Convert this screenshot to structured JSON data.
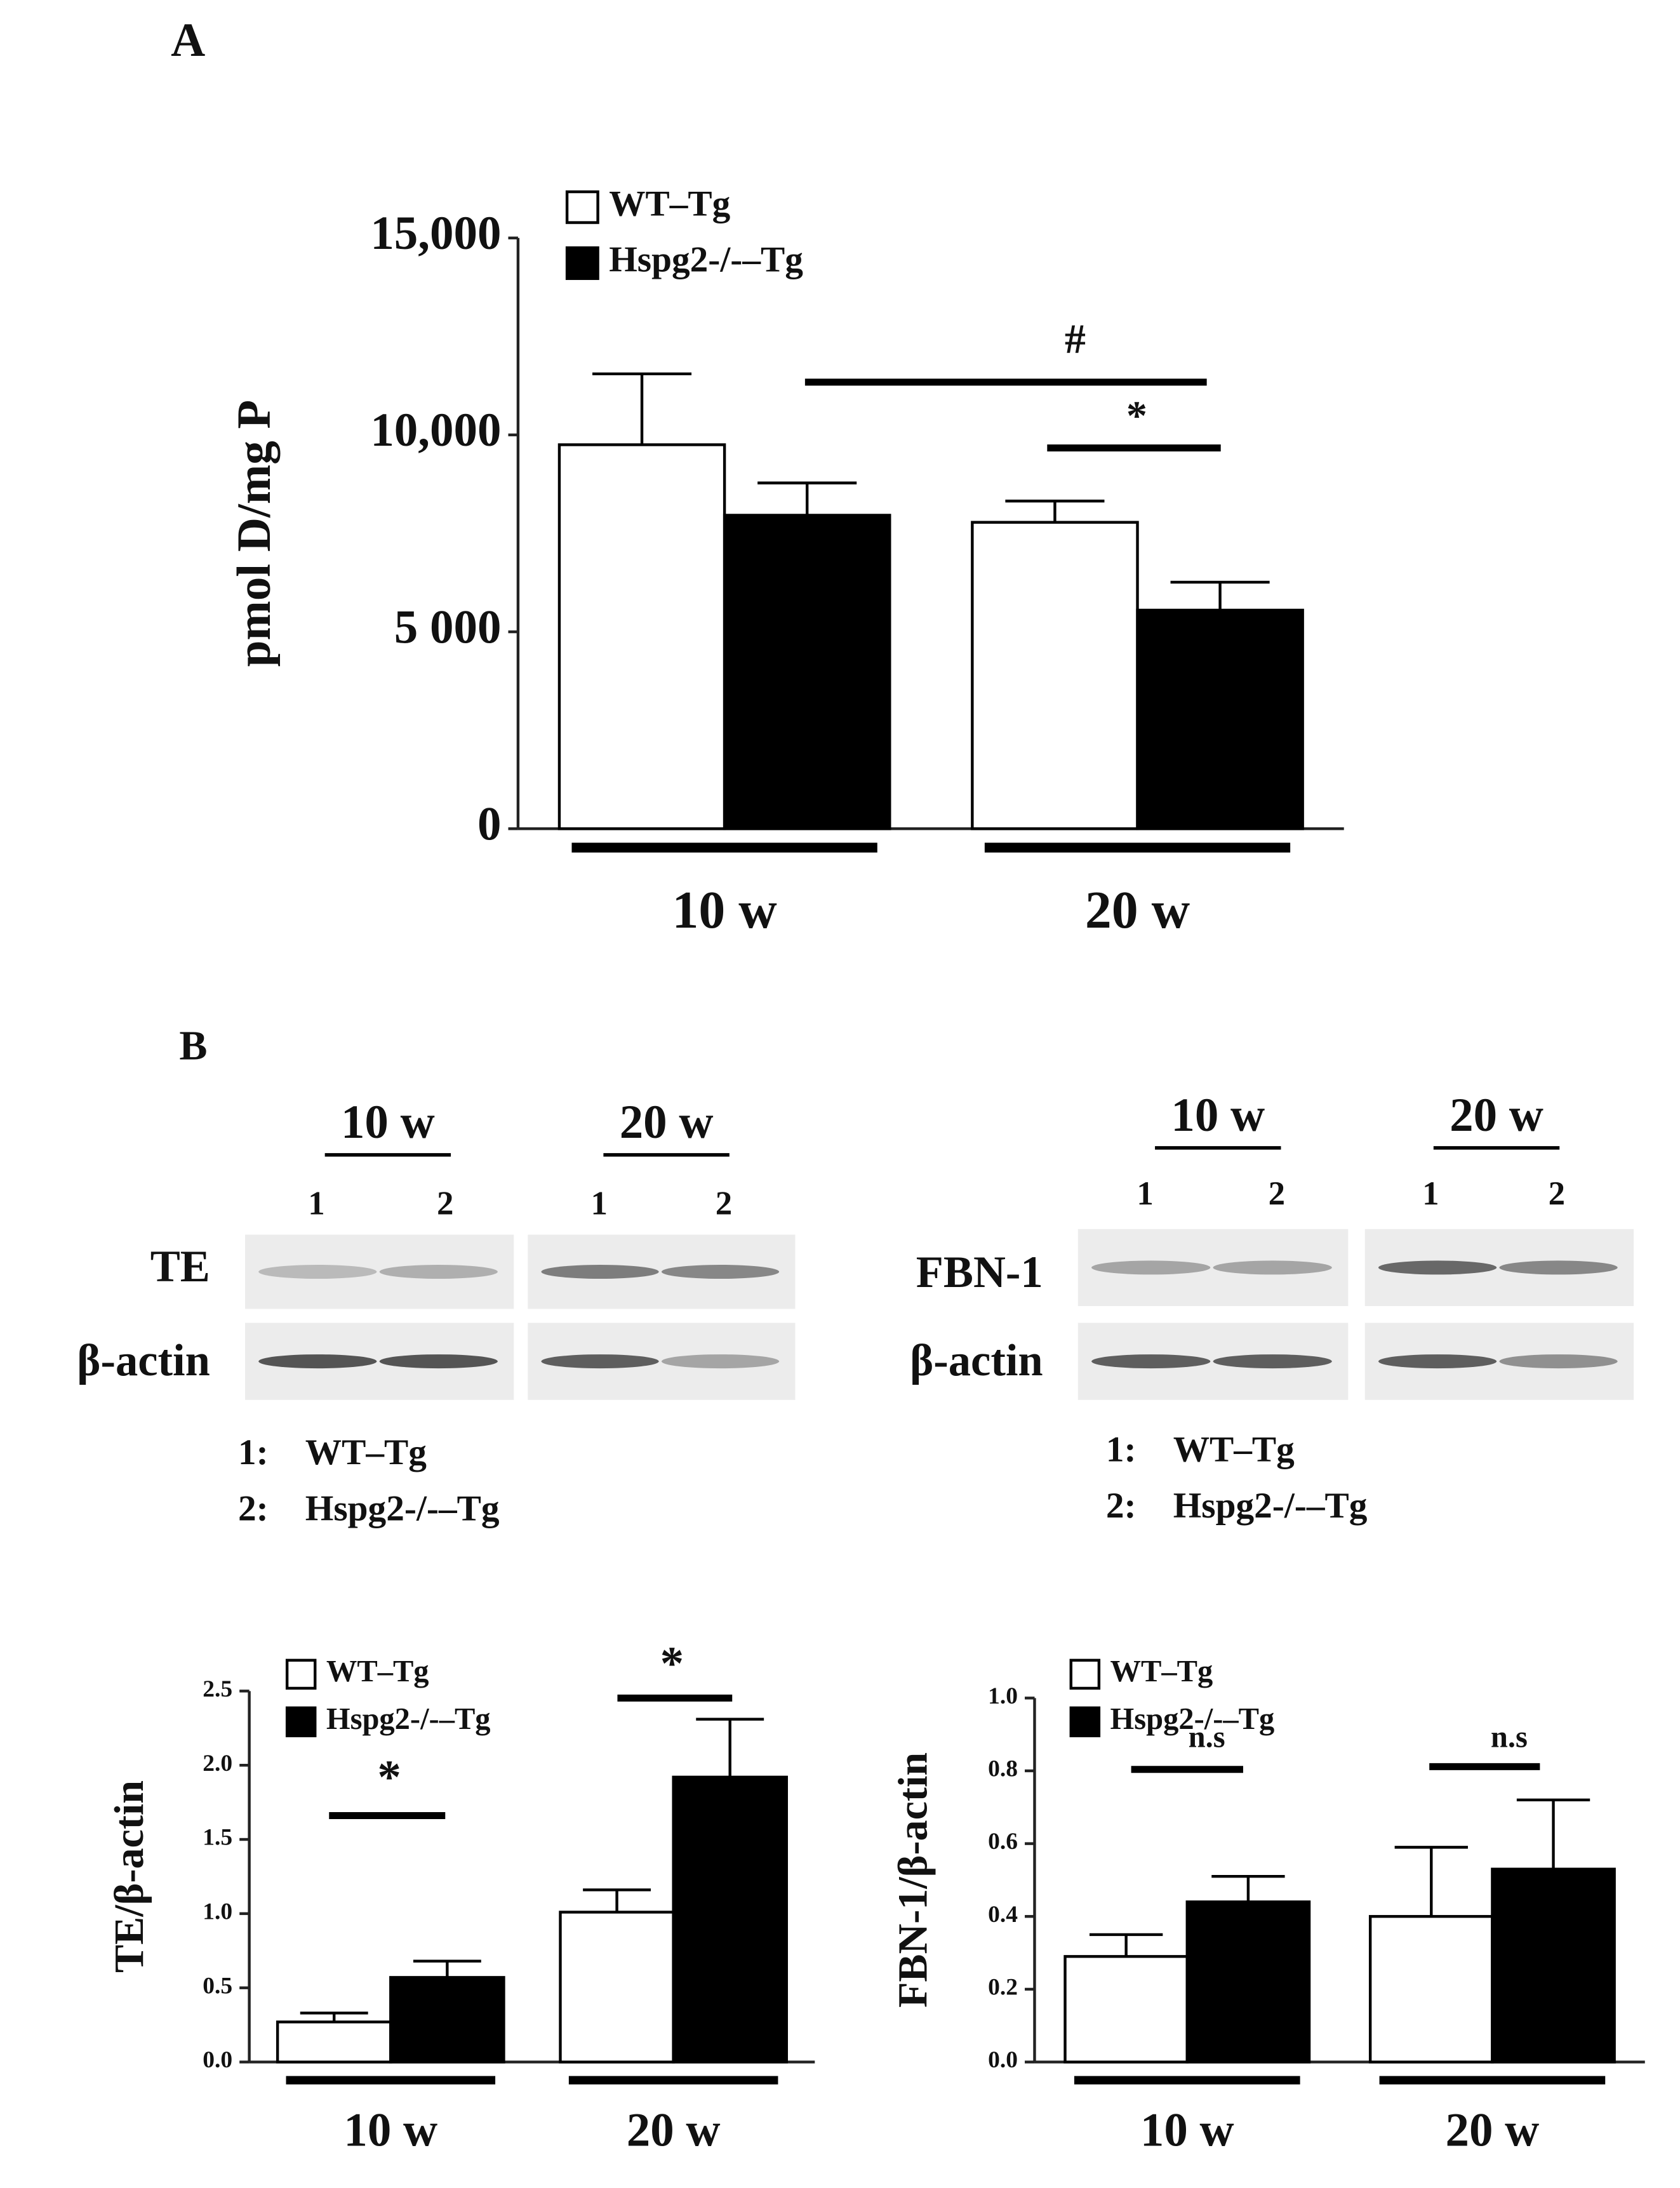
{
  "panel_labels": [
    "A",
    "B"
  ],
  "chart_data": [
    {
      "type": "bar",
      "y_label": "pmol D/mg P",
      "categories": [
        "10 w",
        "20 w"
      ],
      "series": [
        {
          "name": "WT–Tg",
          "color": "#ffffff",
          "values": [
            9750,
            7780
          ],
          "errors": [
            1800,
            540
          ]
        },
        {
          "name": "Hspg2-/-–Tg",
          "color": "#000000",
          "values": [
            7960,
            5550
          ],
          "errors": [
            820,
            710
          ]
        }
      ],
      "ylim": [
        0,
        15000
      ],
      "yticks": [
        0,
        {
          "value": 5000,
          "label": "5 000"
        },
        {
          "value": 10000,
          "label": "10,000"
        },
        {
          "value": 15000,
          "label": "15,000"
        }
      ],
      "annotations": [
        "#",
        "*"
      ]
    },
    {
      "type": "bar",
      "y_label": "TE/β-actin",
      "categories": [
        "10 w",
        "20 w"
      ],
      "series": [
        {
          "name": "WT–Tg",
          "color": "#ffffff",
          "values": [
            0.27,
            1.01
          ],
          "errors": [
            0.06,
            0.15
          ]
        },
        {
          "name": "Hspg2-/-–Tg",
          "color": "#000000",
          "values": [
            0.57,
            1.92
          ],
          "errors": [
            0.11,
            0.39
          ]
        }
      ],
      "ylim": [
        0,
        2.5
      ],
      "yticks": [
        {
          "value": 0,
          "label": "0.0"
        },
        0.5,
        {
          "value": 1,
          "label": "1.0"
        },
        1.5,
        {
          "value": 2,
          "label": "2.0"
        },
        2.5
      ],
      "annotations": [
        "*",
        "*"
      ]
    },
    {
      "type": "bar",
      "y_label": "FBN-1/β-actin",
      "categories": [
        "10 w",
        "20 w"
      ],
      "series": [
        {
          "name": "WT–Tg",
          "color": "#ffffff",
          "values": [
            0.29,
            0.4
          ],
          "errors": [
            0.06,
            0.19
          ]
        },
        {
          "name": "Hspg2-/-–Tg",
          "color": "#000000",
          "values": [
            0.44,
            0.53
          ],
          "errors": [
            0.07,
            0.19
          ]
        }
      ],
      "ylim": [
        0,
        1
      ],
      "yticks": [
        {
          "value": 0,
          "label": "0.0"
        },
        0.2,
        0.4,
        0.6,
        0.8,
        {
          "value": 1,
          "label": "1.0"
        }
      ],
      "annotations": [
        "n.s",
        "n.s"
      ]
    }
  ],
  "blots": [
    {
      "groups": [
        "10 w",
        "20 w"
      ],
      "lanes": [
        "1",
        "2",
        "1",
        "2"
      ],
      "rows": [
        "TE",
        "β-actin"
      ],
      "legend": [
        {
          "num": "1:",
          "text": "WT–Tg"
        },
        {
          "num": "2:",
          "text": "Hspg2-/-–Tg"
        }
      ]
    },
    {
      "groups": [
        "10 w",
        "20 w"
      ],
      "lanes": [
        "1",
        "2",
        "1",
        "2"
      ],
      "rows": [
        "FBN-1",
        "β-actin"
      ],
      "legend": [
        {
          "num": "1:",
          "text": "WT–Tg"
        },
        {
          "num": "2:",
          "text": "Hspg2-/-–Tg"
        }
      ]
    }
  ]
}
